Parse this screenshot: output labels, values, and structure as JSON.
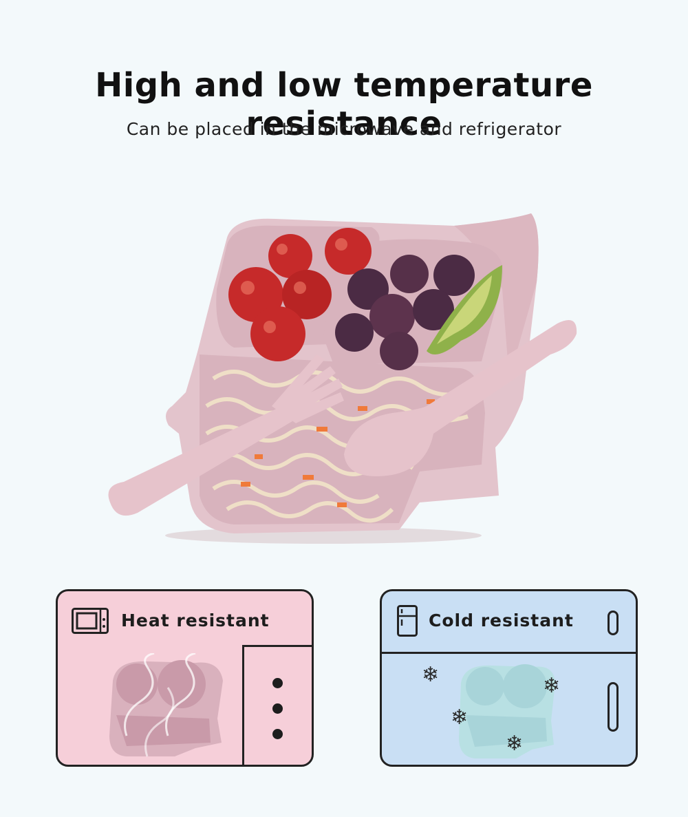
{
  "header": {
    "title": "High and low temperature resistance",
    "subtitle": "Can be placed in the microwave and refrigerator"
  },
  "hero": {
    "product_color": "#e3c4cc",
    "description_icon": "elephant-plate-with-utensils"
  },
  "features": [
    {
      "label": "Heat resistant",
      "icon": "microwave-icon",
      "background": "#f6cfd9"
    },
    {
      "label": "Cold resistant",
      "icon": "fridge-icon",
      "background": "#c9dff4"
    }
  ],
  "colors": {
    "page_background": "#f3f9fb",
    "outline": "#222222",
    "pink_plate": "#e3c4cc",
    "blue_plate": "#bfe0e6"
  }
}
